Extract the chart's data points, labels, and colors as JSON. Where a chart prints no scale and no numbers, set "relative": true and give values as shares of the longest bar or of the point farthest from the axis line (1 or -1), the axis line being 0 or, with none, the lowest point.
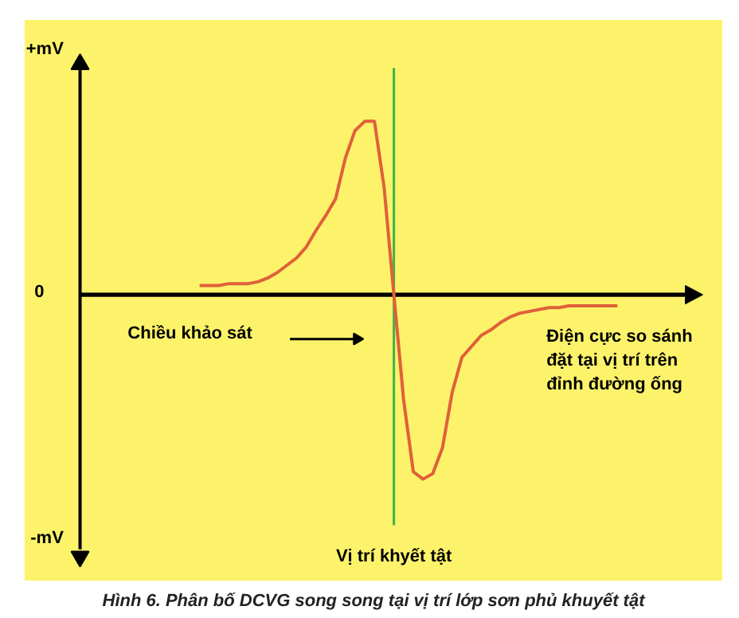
{
  "chart_data": {
    "type": "line",
    "relative": true,
    "title": "Hình 6. Phân bố DCVG song song tại vị trí lớp sơn phủ khuyết tật",
    "categories": [
      null,
      null,
      null,
      null,
      null,
      null,
      null,
      null,
      null,
      null,
      null,
      null,
      null,
      null,
      null,
      null,
      null,
      null,
      null,
      null,
      null,
      null,
      null,
      null,
      null,
      null,
      null,
      null,
      null,
      null,
      null,
      null,
      null,
      null,
      null,
      null,
      null,
      null,
      null,
      null,
      null,
      null,
      null,
      null
    ],
    "series": [
      {
        "color": "#e0603a",
        "values": [
          0.05,
          0.05,
          0.05,
          0.06,
          0.06,
          0.06,
          0.07,
          0.09,
          0.12,
          0.16,
          0.2,
          0.26,
          0.35,
          0.43,
          0.52,
          0.74,
          0.89,
          0.94,
          0.94,
          0.58,
          0,
          -0.57,
          -0.96,
          -1,
          -0.97,
          -0.83,
          -0.53,
          -0.34,
          -0.28,
          -0.22,
          -0.19,
          -0.15,
          -0.12,
          -0.1,
          -0.09,
          -0.08,
          -0.07,
          -0.07,
          -0.06,
          -0.06,
          -0.06,
          -0.06,
          -0.06,
          -0.06
        ]
      }
    ],
    "annotations": [
      "+mV",
      "0",
      "-mV",
      "Chiều khảo sát",
      "Điện cực so sánh\nđặt tại vị trí trên\nđỉnh đường ống",
      "Vị trí khyết tật"
    ],
    "marker": "none",
    "line_style": "solid"
  }
}
